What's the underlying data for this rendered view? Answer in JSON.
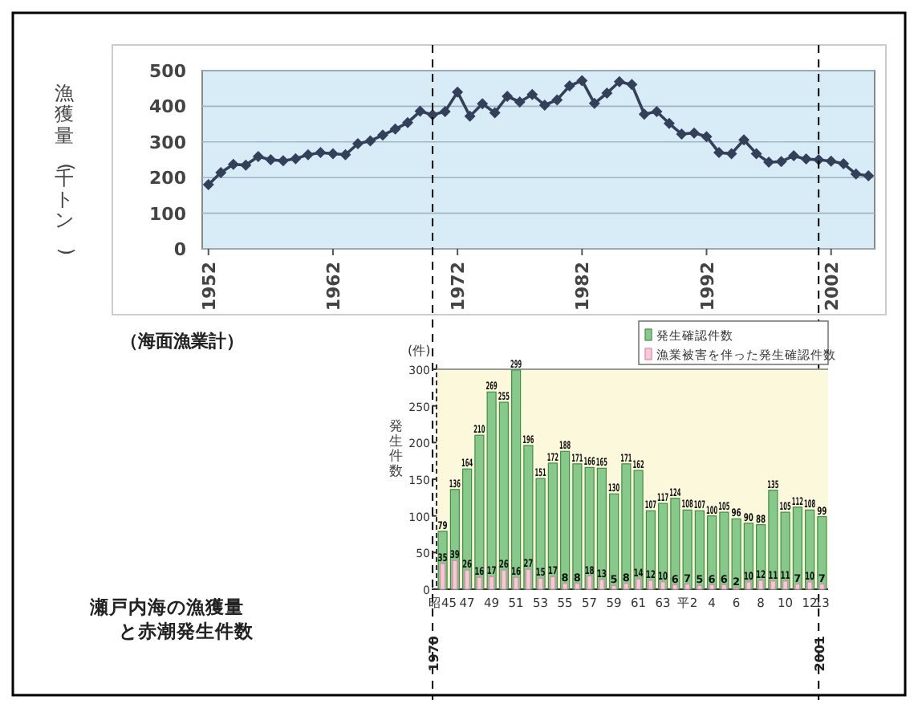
{
  "chart_data": [
    {
      "type": "line",
      "ylabel": "漁獲量(千トン)",
      "annotations": [
        "（海面漁業計）"
      ],
      "color": "#34405a",
      "marker": "diamond",
      "grid": "y",
      "xlim": [
        1951.5,
        2005.5
      ],
      "ylim": [
        0,
        500
      ],
      "xticks": [
        1952,
        1962,
        1972,
        1982,
        1992,
        2002
      ],
      "yticks": [
        0,
        100,
        200,
        300,
        400,
        500
      ],
      "x": [
        1952,
        1953,
        1954,
        1955,
        1956,
        1957,
        1958,
        1959,
        1960,
        1961,
        1962,
        1963,
        1964,
        1965,
        1966,
        1967,
        1968,
        1969,
        1970,
        1971,
        1972,
        1973,
        1974,
        1975,
        1976,
        1977,
        1978,
        1979,
        1980,
        1981,
        1982,
        1983,
        1984,
        1985,
        1986,
        1987,
        1988,
        1989,
        1990,
        1991,
        1992,
        1993,
        1994,
        1995,
        1996,
        1997,
        1998,
        1999,
        2000,
        2001,
        2002,
        2003,
        2004,
        2005
      ],
      "values": [
        180,
        214,
        237,
        235,
        259,
        250,
        247,
        253,
        264,
        270,
        267,
        264,
        295,
        303,
        319,
        336,
        354,
        386,
        376,
        385,
        440,
        372,
        407,
        382,
        428,
        412,
        433,
        403,
        418,
        457,
        472,
        408,
        437,
        469,
        461,
        378,
        385,
        352,
        322,
        325,
        315,
        270,
        267,
        306,
        267,
        243,
        245,
        261,
        252,
        250,
        246,
        239,
        210,
        205
      ],
      "ref_lines": [
        {
          "axis": "x",
          "value": 1970,
          "label": "1970",
          "line_style": "dashed"
        },
        {
          "axis": "x",
          "value": 2001,
          "label": "2001",
          "line_style": "dashed"
        }
      ]
    },
    {
      "type": "bar",
      "ylabel": "発生件数",
      "annotations": [
        "(件)"
      ],
      "ylim": [
        0,
        300
      ],
      "yticks": [
        0,
        50,
        100,
        150,
        200,
        250,
        300
      ],
      "data_labels": true,
      "legend": "top right",
      "categories": [
        "昭45",
        null,
        "47",
        null,
        "49",
        null,
        "51",
        null,
        "53",
        null,
        "55",
        null,
        "57",
        null,
        "59",
        null,
        "61",
        null,
        "63",
        null,
        "平2",
        null,
        "4",
        null,
        "6",
        null,
        "8",
        null,
        "10",
        null,
        "12",
        "13"
      ],
      "series": [
        {
          "name": "発生確認件数",
          "color": "#86c98a",
          "values": [
            79,
            136,
            164,
            210,
            269,
            255,
            299,
            196,
            151,
            172,
            188,
            171,
            166,
            165,
            130,
            171,
            162,
            107,
            117,
            124,
            108,
            107,
            100,
            105,
            96,
            90,
            88,
            135,
            105,
            112,
            108,
            99
          ]
        },
        {
          "name": "漁業被害を伴った発生確認件数",
          "color": "#f6c8d8",
          "values": [
            35,
            39,
            26,
            16,
            17,
            26,
            16,
            27,
            15,
            17,
            8,
            8,
            18,
            13,
            5,
            8,
            14,
            12,
            10,
            6,
            7,
            5,
            6,
            6,
            2,
            10,
            12,
            11,
            11,
            7,
            10,
            7
          ]
        }
      ]
    },
    {
      "type": "other",
      "title": "瀬戸内海の漁獲量と赤潮発生件数"
    }
  ]
}
